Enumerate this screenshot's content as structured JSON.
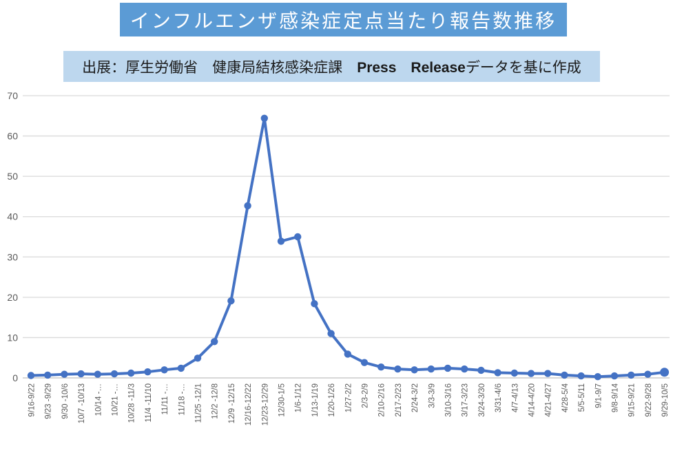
{
  "header": {
    "title": "インフルエンザ感染症定点当たり報告数推移",
    "subtitle_prefix": "出展：厚生労働省　健康局結核感染症課　",
    "subtitle_emphasis": "Press　Release",
    "subtitle_suffix": "データを基に作成"
  },
  "colors": {
    "title_bg": "#5B9BD5",
    "title_text": "#FFFFFF",
    "subtitle_bg": "#BDD7EE",
    "line": "#4472C4",
    "marker": "#4472C4",
    "gridline": "#D9D9D9",
    "axis_line": "#BFBFBF",
    "tick_text": "#595959"
  },
  "chart_data": {
    "type": "line",
    "title": "インフルエンザ感染症定点当たり報告数推移",
    "source_note": "出展：厚生労働省　健康局結核感染症課　Press　Releaseデータを基に作成",
    "xlabel": "",
    "ylabel": "",
    "ylim": [
      0,
      70
    ],
    "ytick_interval": 10,
    "ytick_labels": [
      "0",
      "10",
      "20",
      "30",
      "40",
      "50",
      "60",
      "70"
    ],
    "grid": true,
    "legend": "none",
    "categories": [
      "9/16-9/22",
      "9/23 -9/29",
      "9/30 -10/6",
      "10/7 -10/13",
      "10/14 -…",
      "10/21 -…",
      "10/28 -11/3",
      "11/4 -11/10",
      "11/11 -…",
      "11/18 -…",
      "11/25 -12/1",
      "12/2 -12/8",
      "12/9 -12/15",
      "12/16-12/22",
      "12/23-12/29",
      "12/30-1/5",
      "1/6-1/12",
      "1/13-1/19",
      "1/20-1/26",
      "1/27-2/2",
      "2/3-2/9",
      "2/10-2/16",
      "2/17-2/23",
      "2/24-3/2",
      "3/3-3/9",
      "3/10-3/16",
      "3/17-3/23",
      "3/24-3/30",
      "3/31-4/6",
      "4/7-4/13",
      "4/14-4/20",
      "4/21-4/27",
      "4/28-5/4",
      "5/5-5/11",
      "9/1-9/7",
      "9/8-9/14",
      "9/15-9/21",
      "9/22-9/28",
      "9/29-10/5"
    ],
    "values": [
      0.6,
      0.7,
      0.9,
      1.0,
      0.9,
      1.0,
      1.2,
      1.5,
      2.0,
      2.4,
      4.9,
      9.0,
      19.1,
      42.7,
      64.4,
      33.9,
      35.0,
      18.4,
      11.0,
      5.9,
      3.8,
      2.7,
      2.2,
      2.0,
      2.2,
      2.4,
      2.2,
      1.9,
      1.3,
      1.2,
      1.1,
      1.1,
      0.7,
      0.5,
      0.3,
      0.5,
      0.7,
      0.9,
      1.4
    ]
  }
}
